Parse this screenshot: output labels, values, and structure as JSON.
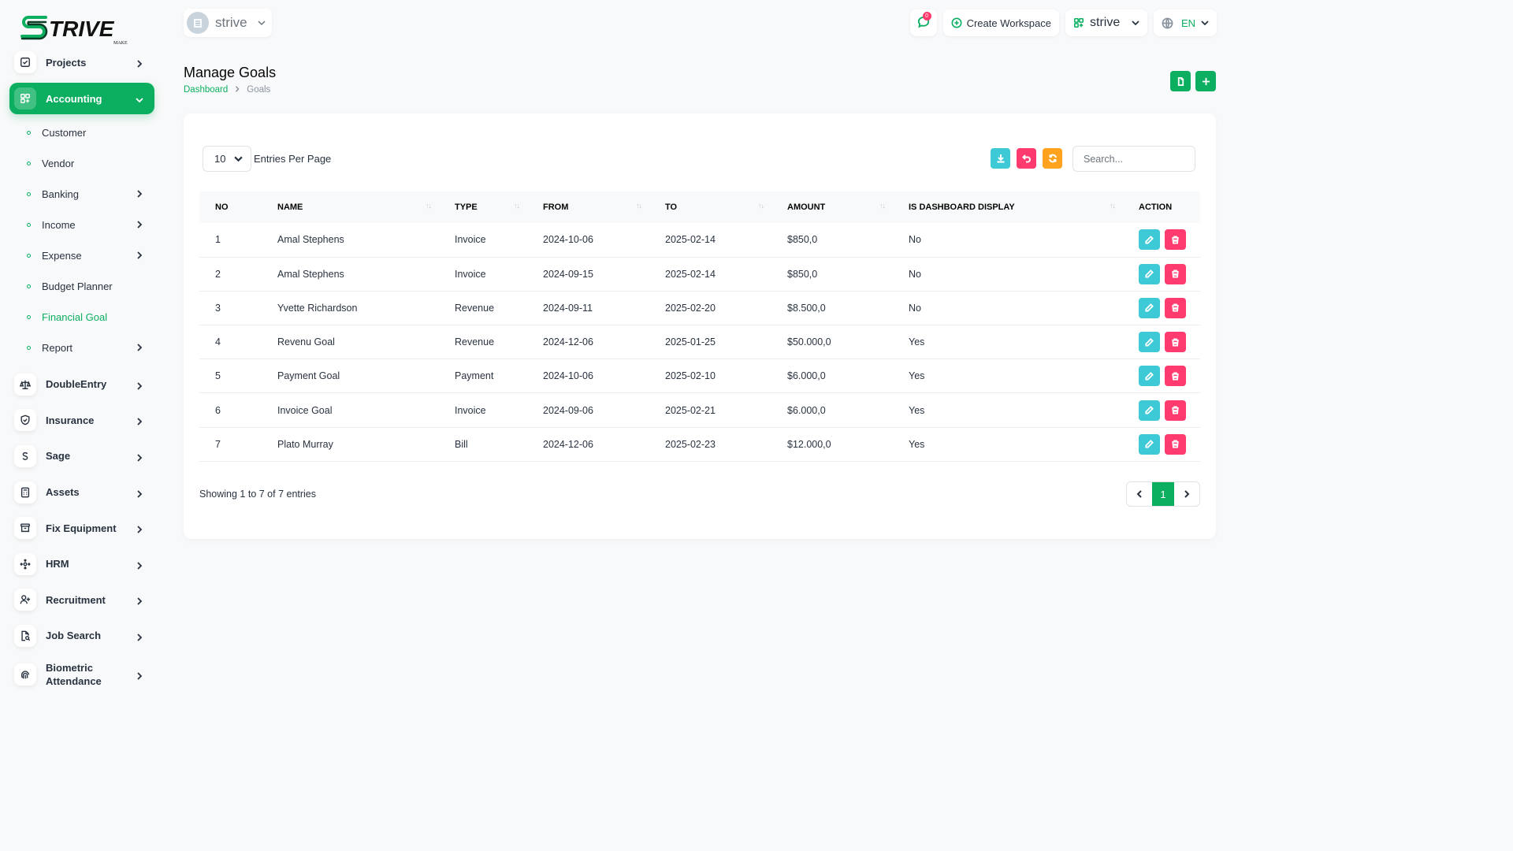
{
  "brand": {
    "logo_text": "TRIVE",
    "logo_sub": "MAKE"
  },
  "header": {
    "workspace_name": "strive",
    "notification_count": "0",
    "create_workspace_label": "Create Workspace",
    "workspace_menu_label": "strive",
    "language_label": "EN"
  },
  "sidebar": {
    "projects": "Projects",
    "accounting": "Accounting",
    "accounting_items": [
      "Customer",
      "Vendor",
      "Banking",
      "Income",
      "Expense",
      "Budget Planner",
      "Financial Goal",
      "Report"
    ],
    "double_entry": "DoubleEntry",
    "insurance": "Insurance",
    "sage": "Sage",
    "assets": "Assets",
    "fix_equipment": "Fix Equipment",
    "hrm": "HRM",
    "recruitment": "Recruitment",
    "job_search": "Job Search",
    "biometric_line1": "Biometric",
    "biometric_line2": "Attendance"
  },
  "page": {
    "title": "Manage Goals",
    "breadcrumb_home": "Dashboard",
    "breadcrumb_current": "Goals"
  },
  "table_controls": {
    "per_page": "10",
    "per_page_label": "Entries Per Page",
    "search_placeholder": "Search..."
  },
  "table": {
    "headers": [
      "NO",
      "NAME",
      "TYPE",
      "FROM",
      "TO",
      "AMOUNT",
      "IS DASHBOARD DISPLAY",
      "ACTION"
    ],
    "rows": [
      [
        "1",
        "Amal Stephens",
        "Invoice",
        "2024-10-06",
        "2025-02-14",
        "$850,0",
        "No"
      ],
      [
        "2",
        "Amal Stephens",
        "Invoice",
        "2024-09-15",
        "2025-02-14",
        "$850,0",
        "No"
      ],
      [
        "3",
        "Yvette Richardson",
        "Revenue",
        "2024-09-11",
        "2025-02-20",
        "$8.500,0",
        "No"
      ],
      [
        "4",
        "Revenu Goal",
        "Revenue",
        "2024-12-06",
        "2025-01-25",
        "$50.000,0",
        "Yes"
      ],
      [
        "5",
        "Payment Goal",
        "Payment",
        "2024-10-06",
        "2025-02-10",
        "$6.000,0",
        "Yes"
      ],
      [
        "6",
        "Invoice Goal",
        "Invoice",
        "2024-09-06",
        "2025-02-21",
        "$6.000,0",
        "Yes"
      ],
      [
        "7",
        "Plato Murray",
        "Bill",
        "2024-12-06",
        "2025-02-23",
        "$12.000,0",
        "Yes"
      ]
    ]
  },
  "footer": {
    "showing": "Showing 1 to 7 of 7 entries",
    "current_page": "1"
  },
  "colors": {
    "primary": "#0caf60",
    "info": "#3ec9d6",
    "danger": "#ff3a6e",
    "warning": "#ffa21d"
  }
}
